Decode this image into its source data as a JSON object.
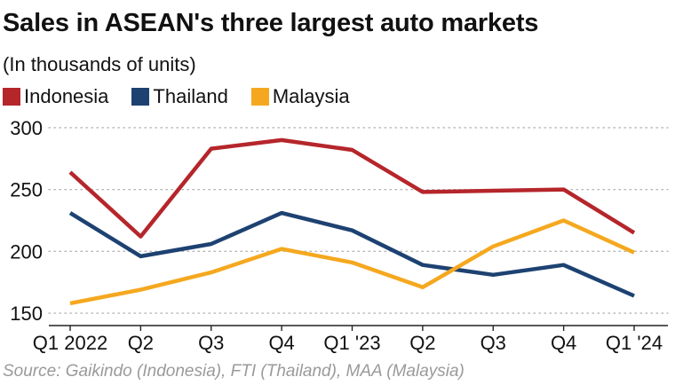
{
  "title": "Sales in ASEAN's three largest auto markets",
  "subtitle": "(In thousands of units)",
  "source": "Source: Gaikindo (Indonesia), FTI (Thailand), MAA (Malaysia)",
  "legend": [
    {
      "name": "Indonesia",
      "color": "#b5262b"
    },
    {
      "name": "Thailand",
      "color": "#1d4272"
    },
    {
      "name": "Malaysia",
      "color": "#f5a81f"
    }
  ],
  "chart_data": {
    "type": "line",
    "categories": [
      "Q1 2022",
      "Q2",
      "Q3",
      "Q4",
      "Q1 '23",
      "Q2",
      "Q3",
      "Q4",
      "Q1 '24"
    ],
    "series": [
      {
        "name": "Indonesia",
        "color": "#b5262b",
        "values": [
          264,
          212,
          283,
          290,
          282,
          248,
          249,
          250,
          215
        ]
      },
      {
        "name": "Thailand",
        "color": "#1d4272",
        "values": [
          231,
          196,
          206,
          231,
          217,
          189,
          181,
          189,
          164
        ]
      },
      {
        "name": "Malaysia",
        "color": "#f5a81f",
        "values": [
          158,
          169,
          183,
          202,
          191,
          171,
          204,
          225,
          199
        ]
      }
    ],
    "y_ticks": [
      150,
      200,
      250,
      300
    ],
    "ylim": [
      140,
      310
    ],
    "grid": true,
    "legend_position": "top-left"
  }
}
